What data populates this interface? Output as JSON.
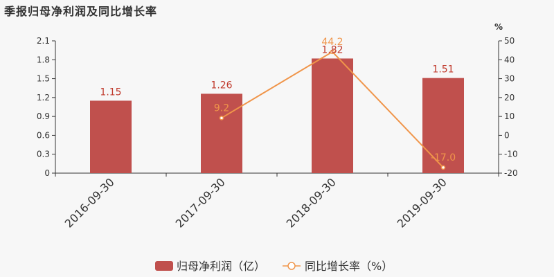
{
  "title": "季报归母净利润及同比增长率",
  "chart_data": {
    "type": "bar",
    "categories": [
      "2016-09-30",
      "2017-09-30",
      "2018-09-30",
      "2019-09-30"
    ],
    "series": [
      {
        "name": "归母净利润（亿）",
        "type": "bar",
        "axis": "left",
        "values": [
          1.15,
          1.26,
          1.82,
          1.51
        ],
        "labels": [
          "1.15",
          "1.26",
          "1.82",
          "1.51"
        ],
        "color": "#c0504d"
      },
      {
        "name": "同比增长率（%）",
        "type": "line",
        "axis": "right",
        "values": [
          null,
          9.2,
          44.2,
          -17.0
        ],
        "labels": [
          "",
          "9.2",
          "44.2",
          "-17.0"
        ],
        "color": "#f0954a"
      }
    ],
    "y_left": {
      "range": [
        0,
        2.1
      ],
      "ticks": [
        "0",
        "0.3",
        "0.6",
        "0.9",
        "1.2",
        "1.5",
        "1.8",
        "2.1"
      ]
    },
    "y_right": {
      "range": [
        -20,
        50
      ],
      "unit": "%",
      "ticks": [
        "-20",
        "-10",
        "0",
        "10",
        "20",
        "30",
        "40",
        "50"
      ]
    },
    "grid": false,
    "legend": "bottom-center"
  }
}
